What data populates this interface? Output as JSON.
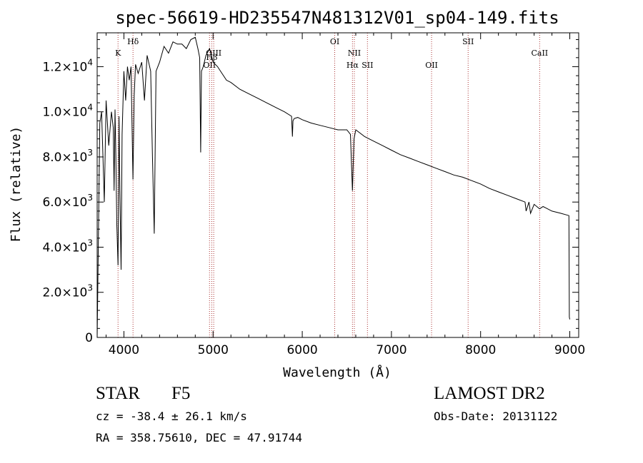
{
  "chart_data": {
    "type": "line",
    "title": "spec-56619-HD235547N481312V01_sp04-149.fits",
    "xlabel": "Wavelength (Å)",
    "ylabel": "Flux (relative)",
    "xlim": [
      3700,
      9100
    ],
    "ylim": [
      0,
      13500
    ],
    "x_ticks": [
      4000,
      5000,
      6000,
      7000,
      8000,
      9000
    ],
    "x_tick_labels": [
      "4000",
      "5000",
      "6000",
      "7000",
      "8000",
      "9000"
    ],
    "y_ticks": [
      0,
      2000,
      4000,
      6000,
      8000,
      10000,
      12000
    ],
    "y_tick_labels": [
      {
        "mantissa": "0",
        "exp": ""
      },
      {
        "mantissa": "2.0×10",
        "exp": "3"
      },
      {
        "mantissa": "4.0×10",
        "exp": "3"
      },
      {
        "mantissa": "6.0×10",
        "exp": "3"
      },
      {
        "mantissa": "8.0×10",
        "exp": "3"
      },
      {
        "mantissa": "1.0×10",
        "exp": "4"
      },
      {
        "mantissa": "1.2×10",
        "exp": "4"
      }
    ],
    "spectral_lines": [
      {
        "label": "K",
        "wavelength": 3934,
        "level": 3
      },
      {
        "label": "Hδ",
        "wavelength": 4102,
        "level": 2
      },
      {
        "label": "OII",
        "wavelength": 4960,
        "level": 5
      },
      {
        "label": "OIII",
        "wavelength": 5007,
        "level": 3
      },
      {
        "label": "Hβ",
        "wavelength": 4985,
        "level": 4
      },
      {
        "label": "OI",
        "wavelength": 6364,
        "level": 2
      },
      {
        "label": "NII",
        "wavelength": 6584,
        "level": 3
      },
      {
        "label": "Hα",
        "wavelength": 6563,
        "level": 5
      },
      {
        "label": "SII",
        "wavelength": 6731,
        "level": 5
      },
      {
        "label": "OII",
        "wavelength": 7450,
        "level": 5
      },
      {
        "label": "SII",
        "wavelength": 7860,
        "level": 2
      },
      {
        "label": "CaII",
        "wavelength": 8662,
        "level": 3
      }
    ],
    "series": [
      {
        "name": "flux",
        "x": [
          3700,
          3710,
          3730,
          3750,
          3780,
          3800,
          3830,
          3860,
          3880,
          3890,
          3900,
          3910,
          3920,
          3934,
          3945,
          3955,
          3968,
          3980,
          4000,
          4020,
          4040,
          4060,
          4080,
          4101,
          4115,
          4130,
          4160,
          4200,
          4230,
          4260,
          4300,
          4320,
          4340,
          4360,
          4400,
          4450,
          4500,
          4550,
          4600,
          4650,
          4700,
          4750,
          4800,
          4830,
          4850,
          4861,
          4870,
          4890,
          4920,
          4960,
          5000,
          5050,
          5100,
          5150,
          5200,
          5300,
          5400,
          5500,
          5600,
          5700,
          5800,
          5880,
          5890,
          5896,
          5910,
          5950,
          6000,
          6100,
          6200,
          6300,
          6400,
          6500,
          6540,
          6563,
          6580,
          6600,
          6700,
          6800,
          6900,
          7000,
          7100,
          7200,
          7300,
          7400,
          7500,
          7600,
          7700,
          7800,
          7900,
          8000,
          8100,
          8200,
          8300,
          8400,
          8498,
          8510,
          8542,
          8560,
          8600,
          8662,
          8700,
          8800,
          8900,
          8990,
          8995,
          9000
        ],
        "y": [
          0,
          3000,
          9500,
          10000,
          6000,
          10500,
          8500,
          10000,
          9300,
          6500,
          10100,
          8000,
          5000,
          3200,
          9800,
          6500,
          3000,
          9000,
          11800,
          10500,
          12000,
          11400,
          12000,
          7000,
          10700,
          12100,
          11700,
          12200,
          10500,
          12500,
          11800,
          8000,
          4600,
          11800,
          12200,
          12900,
          12600,
          13100,
          13000,
          13000,
          12800,
          13200,
          13300,
          12800,
          12400,
          8200,
          11800,
          12000,
          12500,
          12800,
          12200,
          12000,
          11700,
          11400,
          11300,
          11000,
          10800,
          10600,
          10400,
          10200,
          10000,
          9800,
          8900,
          9600,
          9700,
          9750,
          9650,
          9500,
          9400,
          9300,
          9200,
          9200,
          9000,
          6500,
          8800,
          9200,
          8900,
          8700,
          8500,
          8300,
          8100,
          7950,
          7800,
          7650,
          7500,
          7350,
          7200,
          7100,
          6950,
          6800,
          6600,
          6450,
          6300,
          6150,
          6000,
          5600,
          6000,
          5500,
          5900,
          5700,
          5800,
          5600,
          5500,
          5400,
          900,
          800
        ]
      }
    ]
  },
  "info": {
    "object_type": "STAR",
    "subclass": "F5",
    "survey": "LAMOST DR2",
    "redshift_line": "cz = -38.4 ± 26.1 km/s",
    "obs_date": "Obs-Date: 20131122",
    "coords": "RA = 358.75610, DEC =  47.91744"
  }
}
